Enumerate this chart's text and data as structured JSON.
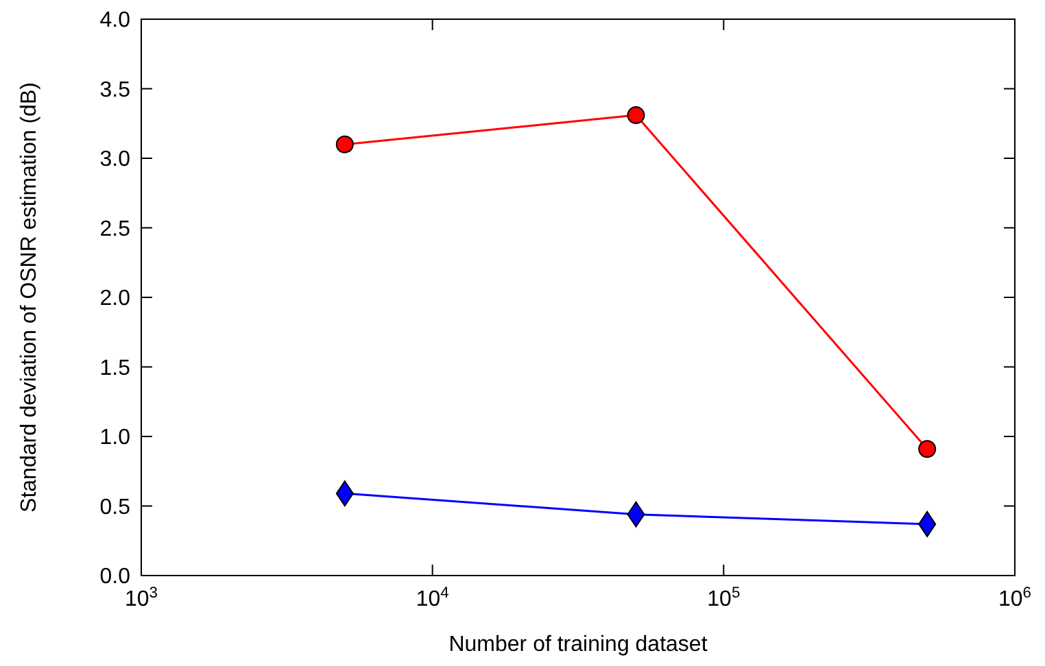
{
  "chart_data": {
    "type": "line",
    "xlabel": "Number of training dataset",
    "ylabel": "Standard deviation of OSNR estimation (dB)",
    "log": "x",
    "x": [
      5000,
      50000,
      500000
    ],
    "xlim": [
      1000,
      1000000
    ],
    "xticks": [
      {
        "value": 1000,
        "label": "10$^{3}$"
      },
      {
        "value": 10000,
        "label": "10$^{4}$"
      },
      {
        "value": 100000,
        "label": "10$^{5}$"
      },
      {
        "value": 1000000,
        "label": "10$^{6}$"
      }
    ],
    "ylim": [
      0,
      4
    ],
    "yticks": [
      {
        "value": 0,
        "label": "0.0"
      },
      {
        "value": 0.5,
        "label": "0.5"
      },
      {
        "value": 1,
        "label": "1.0"
      },
      {
        "value": 1.5,
        "label": "1.5"
      },
      {
        "value": 2,
        "label": "2.0"
      },
      {
        "value": 2.5,
        "label": "2.5"
      },
      {
        "value": 3,
        "label": "3.0"
      },
      {
        "value": 3.5,
        "label": "3.5"
      },
      {
        "value": 4,
        "label": "4.0"
      }
    ],
    "grid": false,
    "series": [
      {
        "color": "#ff0000",
        "marker": "circle",
        "values": [
          3.1,
          3.31,
          0.91
        ]
      },
      {
        "color": "#0000ff",
        "marker": "diamond",
        "values": [
          0.59,
          0.44,
          0.37
        ]
      }
    ]
  }
}
